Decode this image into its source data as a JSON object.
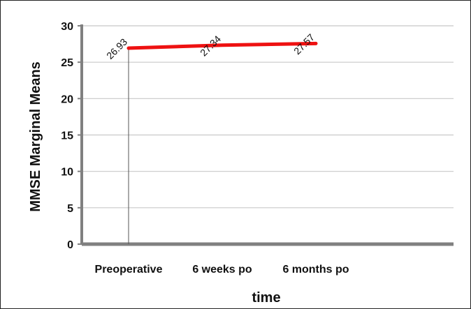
{
  "chart_data": {
    "type": "line",
    "categories": [
      "Preoperative",
      "6 weeks po",
      "6 months po"
    ],
    "series": [
      {
        "values": [
          26.93,
          27.34,
          27.57
        ],
        "color": "#ee1111"
      }
    ],
    "data_labels": [
      "26.93",
      "27.34",
      "27.57"
    ],
    "xlabel": "time",
    "ylabel": "MMSE Marginal Means",
    "ylim": [
      0,
      30
    ],
    "yticks": [
      0,
      5,
      10,
      15,
      20,
      25,
      30
    ],
    "grid": true,
    "axis_color": "#808080",
    "grid_color": "#c8c8c8"
  }
}
